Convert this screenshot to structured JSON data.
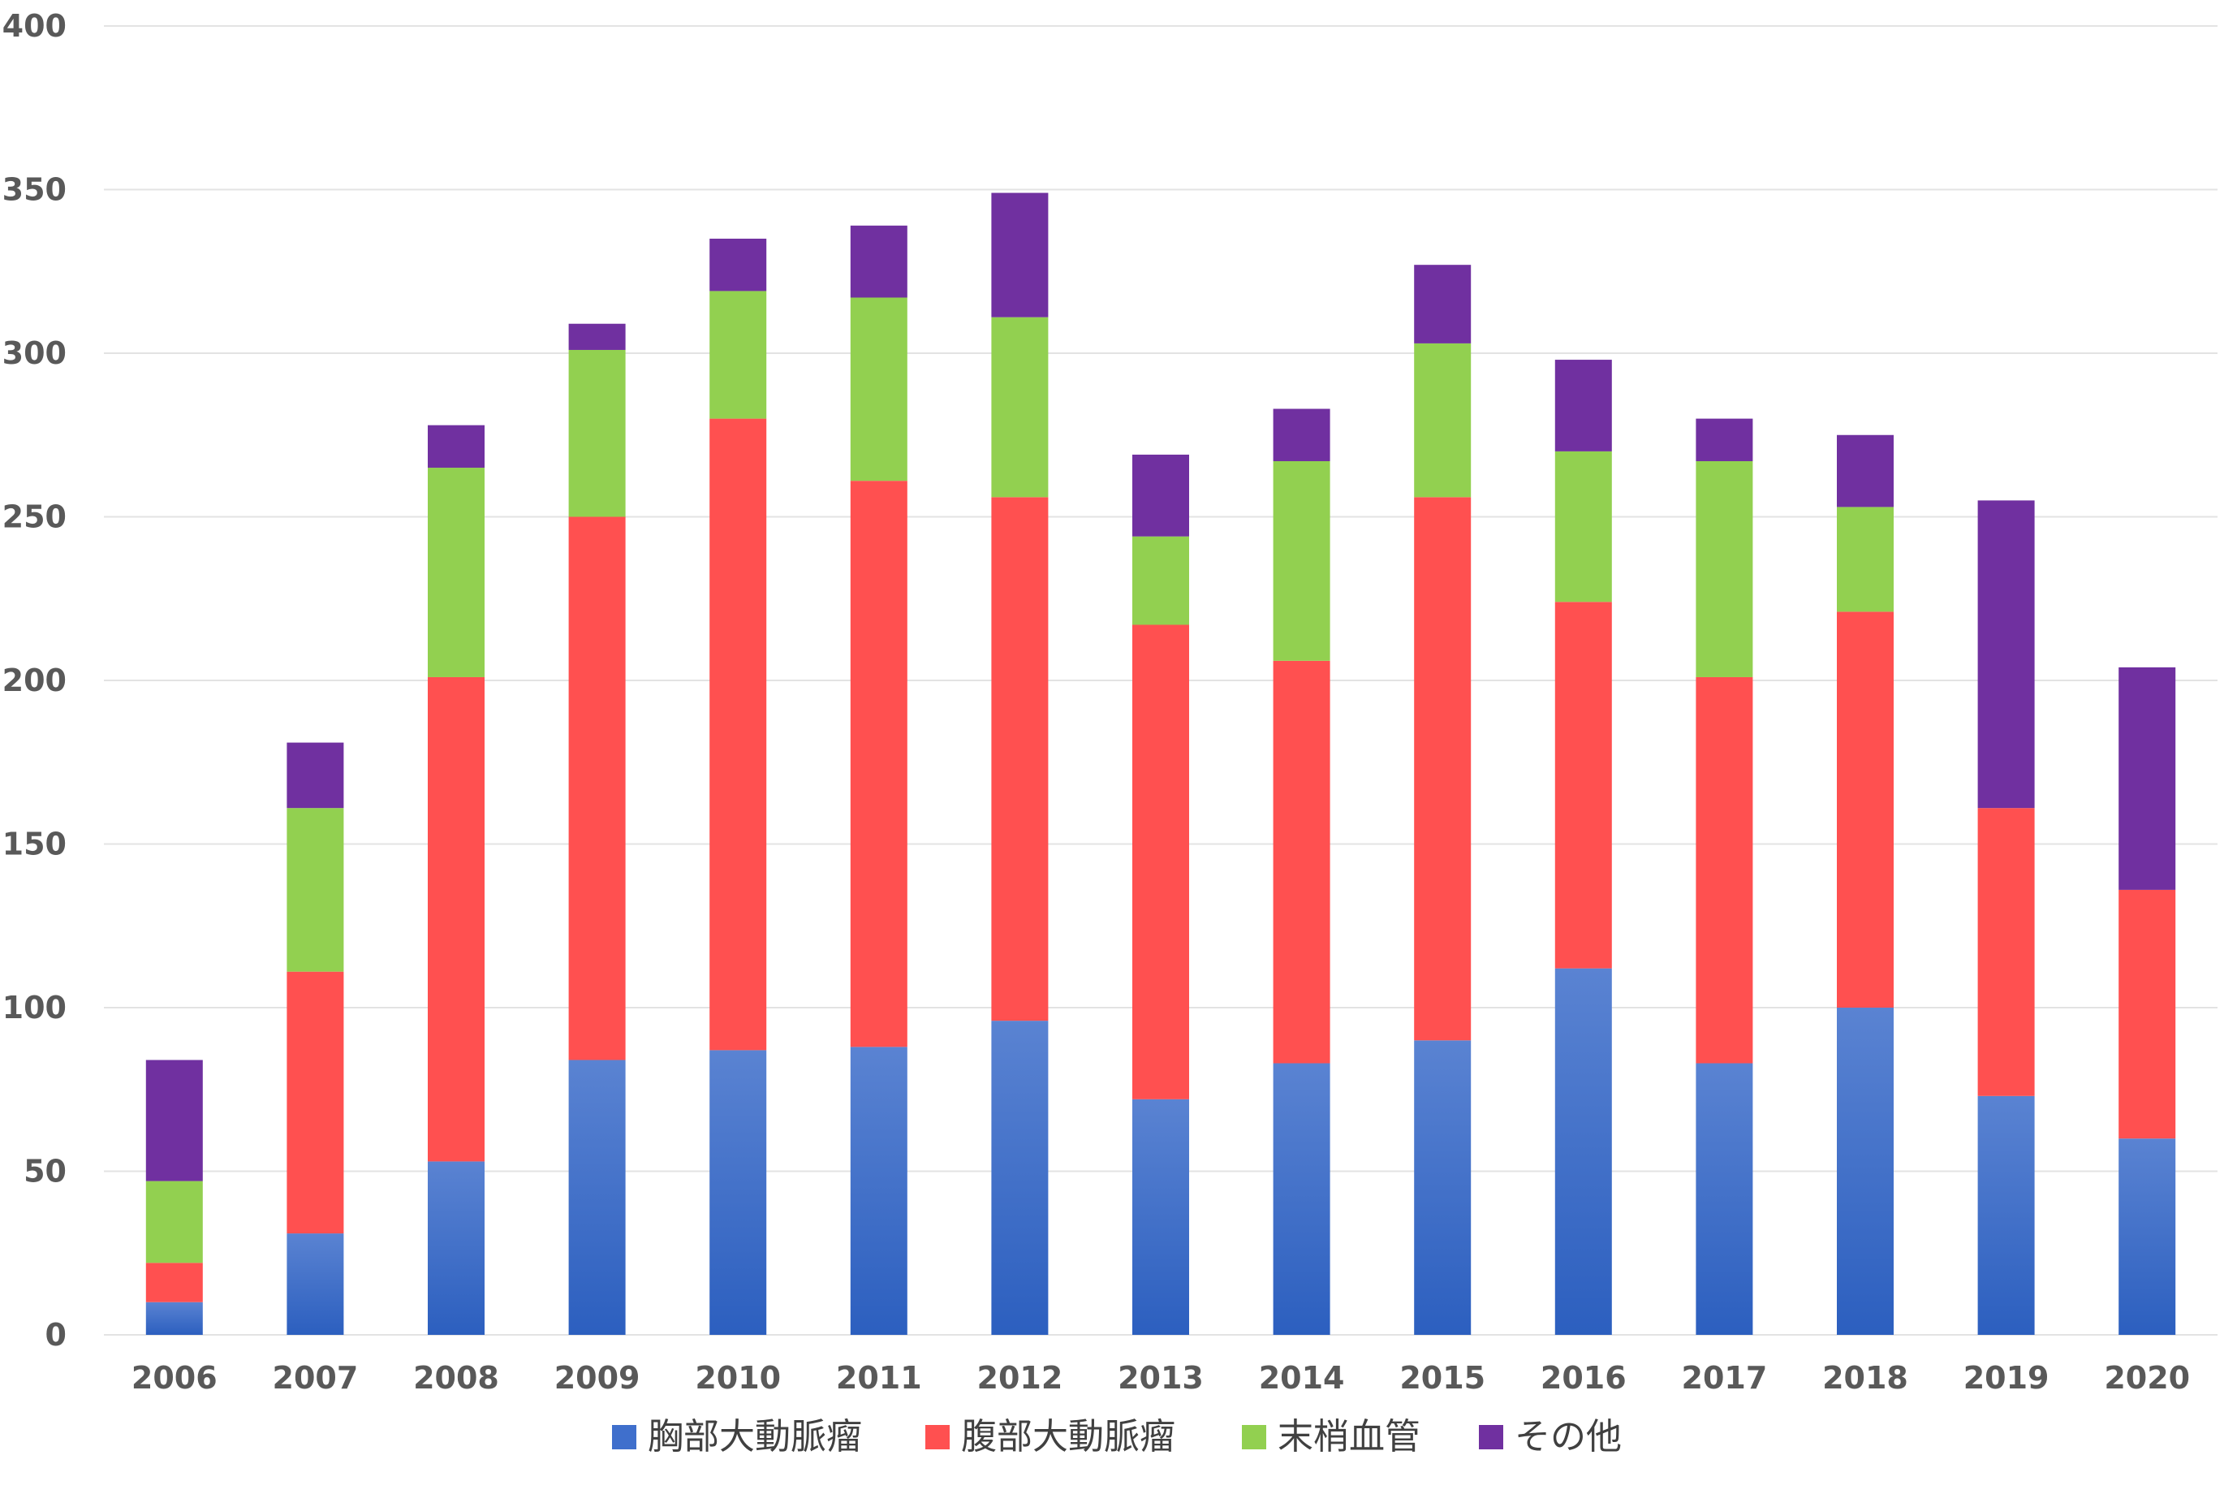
{
  "chart_data": {
    "type": "bar",
    "stacked": true,
    "categories": [
      "2006",
      "2007",
      "2008",
      "2009",
      "2010",
      "2011",
      "2012",
      "2013",
      "2014",
      "2015",
      "2016",
      "2017",
      "2018",
      "2019",
      "2020"
    ],
    "series": [
      {
        "name": "胸部大動脈瘤",
        "color": "#3f6fcc",
        "values": [
          10,
          31,
          53,
          84,
          87,
          88,
          96,
          72,
          83,
          90,
          112,
          83,
          100,
          73,
          60
        ]
      },
      {
        "name": "腹部大動脈瘤",
        "color": "#ff5050",
        "values": [
          12,
          80,
          148,
          166,
          193,
          173,
          160,
          145,
          123,
          166,
          112,
          118,
          121,
          88,
          76
        ]
      },
      {
        "name": "末梢血管",
        "color": "#92d050",
        "values": [
          25,
          50,
          64,
          51,
          39,
          56,
          55,
          27,
          61,
          47,
          46,
          66,
          32,
          0,
          0
        ]
      },
      {
        "name": "その他",
        "color": "#7030a0",
        "values": [
          37,
          20,
          13,
          8,
          16,
          22,
          38,
          25,
          16,
          24,
          28,
          13,
          22,
          94,
          68
        ]
      }
    ],
    "ylim": [
      0,
      400
    ],
    "yticks": [
      "0",
      "50",
      "100",
      "150",
      "200",
      "250",
      "300",
      "350",
      "400"
    ],
    "grid": true,
    "legend": "bottom",
    "xlabel": "",
    "ylabel": "",
    "title": ""
  }
}
